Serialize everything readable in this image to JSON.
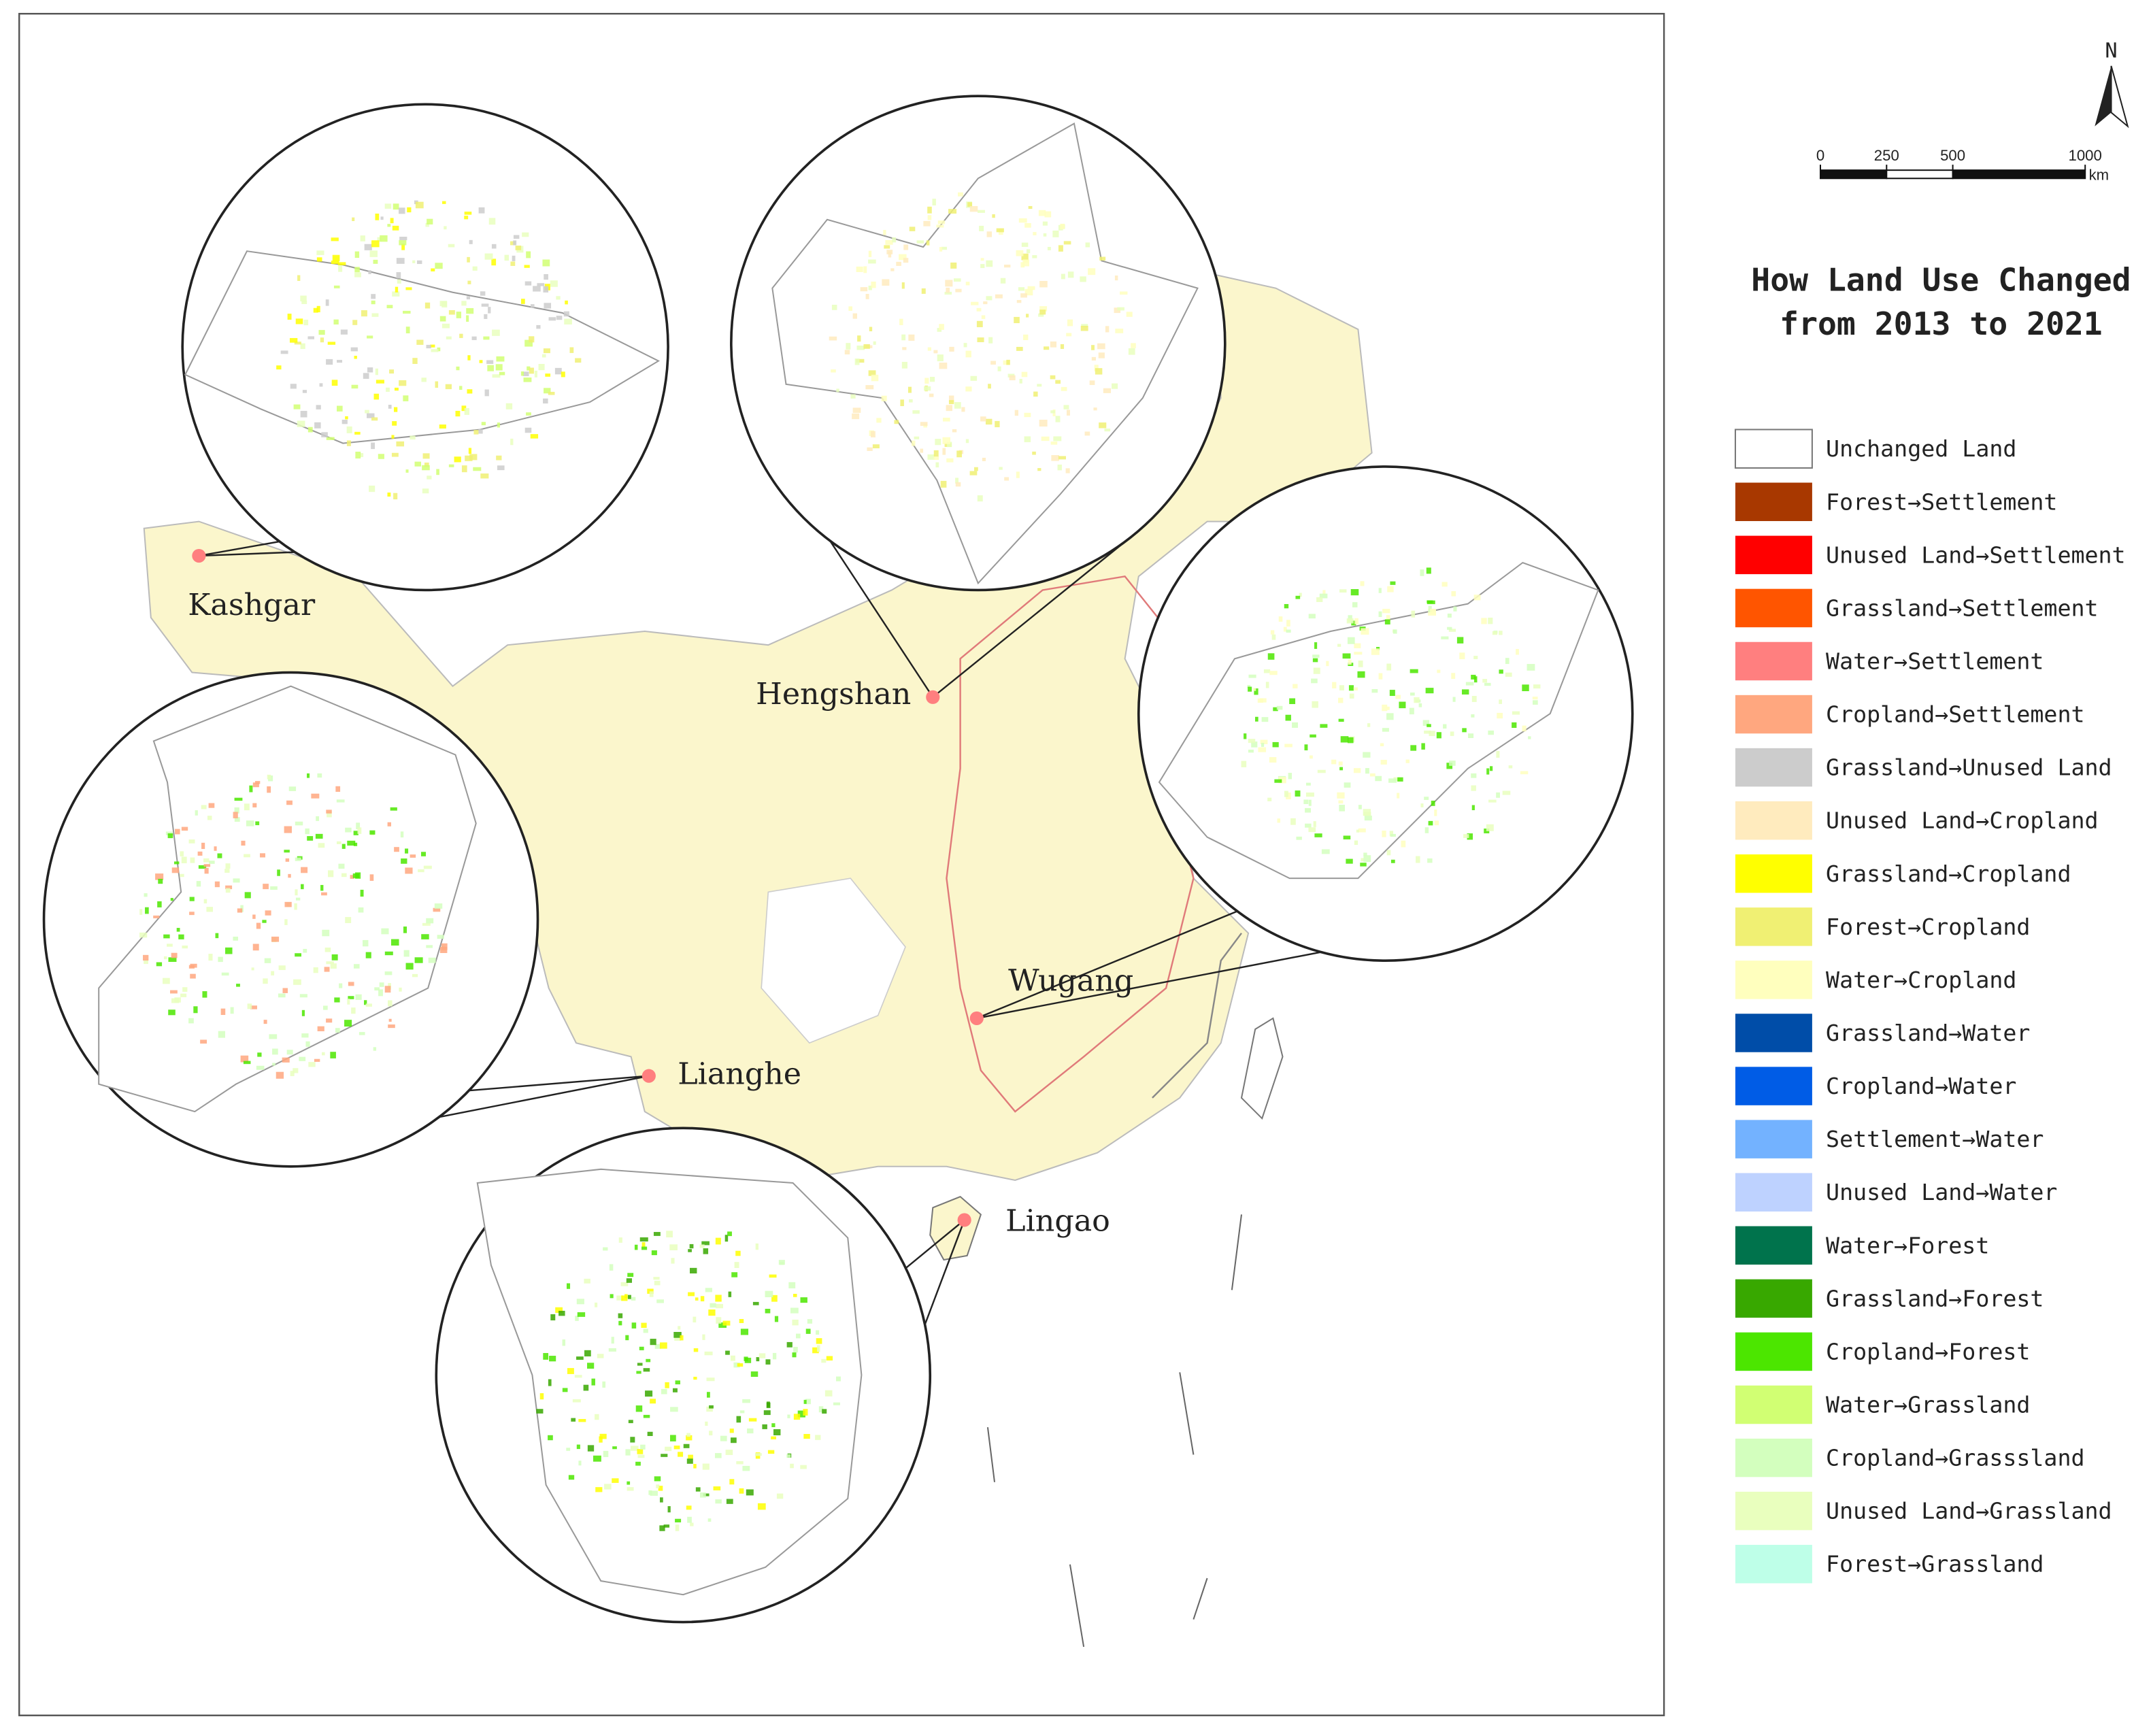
{
  "legend": {
    "title_lines": [
      "How Land Use Changed",
      "from 2013 to 2021"
    ],
    "items": [
      {
        "label": "Unchanged Land",
        "color": "#ffffff"
      },
      {
        "label": "Forest→Settlement",
        "color": "#a83800"
      },
      {
        "label": "Unused Land→Settlement",
        "color": "#ff0000"
      },
      {
        "label": "Grassland→Settlement",
        "color": "#ff5500"
      },
      {
        "label": "Water→Settlement",
        "color": "#ff7f7f"
      },
      {
        "label": "Cropland→Settlement",
        "color": "#ffa77f"
      },
      {
        "label": "Grassland→Unused Land",
        "color": "#cccccc"
      },
      {
        "label": "Unused Land→Cropland",
        "color": "#ffebbe"
      },
      {
        "label": "Grassland→Cropland",
        "color": "#ffff00"
      },
      {
        "label": "Forest→Cropland",
        "color": "#f0f073"
      },
      {
        "label": "Water→Cropland",
        "color": "#ffffbe"
      },
      {
        "label": "Grassland→Water",
        "color": "#004da8"
      },
      {
        "label": "Cropland→Water",
        "color": "#005ce6"
      },
      {
        "label": "Settlement→Water",
        "color": "#73b2ff"
      },
      {
        "label": "Unused Land→Water",
        "color": "#bed2ff"
      },
      {
        "label": "Water→Forest",
        "color": "#00734c"
      },
      {
        "label": "Grassland→Forest",
        "color": "#38a800"
      },
      {
        "label": "Cropland→Forest",
        "color": "#4ce600"
      },
      {
        "label": "Water→Grassland",
        "color": "#d1ff73"
      },
      {
        "label": "Cropland→Grasssland",
        "color": "#d3ffbe"
      },
      {
        "label": "Unused Land→Grassland",
        "color": "#e9ffbe"
      },
      {
        "label": "Forest→Grassland",
        "color": "#beffe8"
      }
    ]
  },
  "north_arrow": "N",
  "scale_bar": {
    "ticks": [
      0,
      250,
      500,
      1000
    ],
    "unit": "km"
  },
  "places": [
    "Kashgar",
    "Hengshan",
    "Wugang",
    "Lianghe",
    "Lingao"
  ]
}
